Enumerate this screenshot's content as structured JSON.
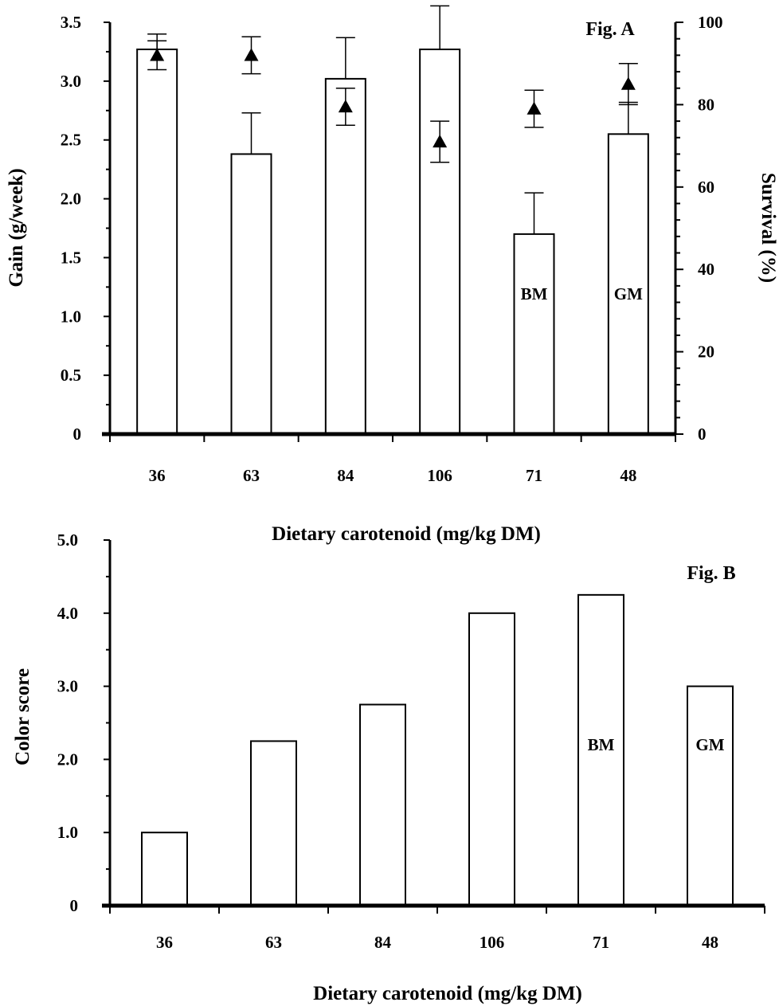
{
  "chart_data": [
    {
      "type": "bar",
      "panel_label": "Fig. A",
      "categories": [
        "36",
        "63",
        "84",
        "106",
        "71",
        "48"
      ],
      "series": [
        {
          "values": [
            3.27,
            2.38,
            3.02,
            3.27,
            1.7,
            2.55
          ],
          "error_up": [
            0.13,
            0.35,
            0.35,
            0.37,
            0.35,
            0.27
          ],
          "error_down": [
            0.0,
            0.0,
            0.0,
            0.0,
            0.0,
            0.0
          ],
          "axis": "left"
        },
        {
          "values": [
            92,
            92,
            79.5,
            71,
            79,
            85
          ],
          "error_up": [
            3.5,
            4.5,
            4.5,
            5,
            4.5,
            5
          ],
          "error_down": [
            3.5,
            4.5,
            4.5,
            5,
            4.5,
            5
          ],
          "axis": "right",
          "marker": "triangle"
        }
      ],
      "bar_annotations": [
        {
          "category": "71",
          "text": "BM"
        },
        {
          "category": "48",
          "text": "GM"
        }
      ],
      "xlabel": "Dietary carotenoid (mg/kg DM)",
      "ylabel": "Gain (g/week)",
      "ylabel_right": "Survival (%)",
      "ylim": [
        0,
        3.5
      ],
      "ylim_right": [
        0,
        100
      ],
      "yticks_left": [
        "0",
        "0.5",
        "1.0",
        "1.5",
        "2.0",
        "2.5",
        "3.0",
        "3.5"
      ],
      "yticks_right": [
        "0",
        "20",
        "40",
        "60",
        "80",
        "100"
      ],
      "grid": false
    },
    {
      "type": "bar",
      "panel_label": "Fig. B",
      "categories": [
        "36",
        "63",
        "84",
        "106",
        "71",
        "48"
      ],
      "values": [
        1.0,
        2.25,
        2.75,
        4.0,
        4.25,
        3.0
      ],
      "bar_annotations": [
        {
          "category": "71",
          "text": "BM"
        },
        {
          "category": "48",
          "text": "GM"
        }
      ],
      "xlabel": "Dietary carotenoid (mg/kg DM)",
      "ylabel": "Color score",
      "ylim": [
        0,
        5.0
      ],
      "yticks": [
        "0",
        "1.0",
        "2.0",
        "3.0",
        "4.0",
        "5.0"
      ],
      "grid": false
    }
  ]
}
